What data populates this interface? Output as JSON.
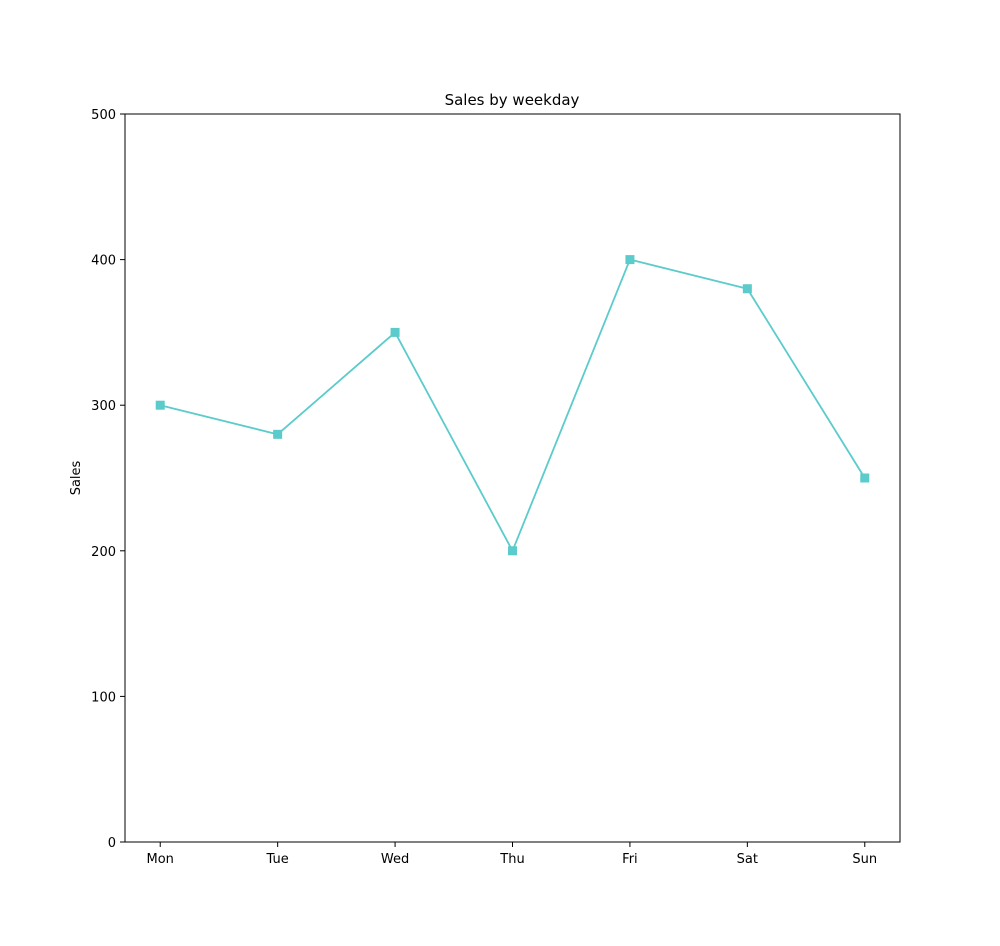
{
  "chart_data": {
    "type": "line",
    "title": "Sales by weekday",
    "xlabel": "",
    "ylabel": "Sales",
    "categories": [
      "Mon",
      "Tue",
      "Wed",
      "Thu",
      "Fri",
      "Sat",
      "Sun"
    ],
    "series": [
      {
        "values": [
          300,
          280,
          350,
          200,
          400,
          380,
          250
        ],
        "color": "#5bcbcb",
        "marker": "square"
      }
    ],
    "ylim": [
      0,
      500
    ],
    "yticks": [
      0,
      100,
      200,
      300,
      400,
      500
    ],
    "grid": false,
    "legend": "none"
  }
}
